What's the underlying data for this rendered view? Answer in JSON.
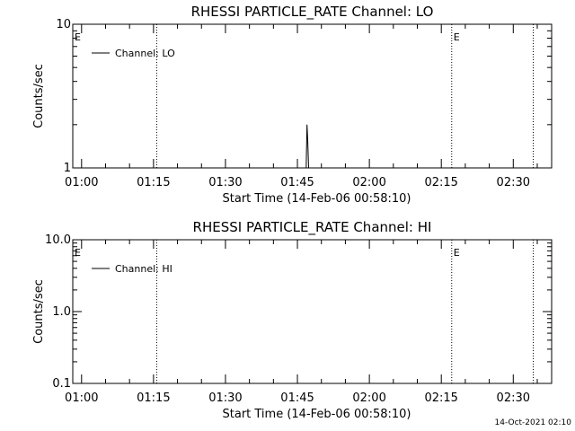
{
  "footer_timestamp": "14-Oct-2021 02:10",
  "chart_data": [
    {
      "type": "line",
      "title": "RHESSI PARTICLE_RATE Channel: LO",
      "xlabel": "Start Time (14-Feb-06 00:58:10)",
      "ylabel": "Counts/sec",
      "y_scale": "log",
      "ylim": [
        1,
        10
      ],
      "y_ticks": [
        1,
        10
      ],
      "y_tick_labels": [
        "1",
        "10"
      ],
      "xlim": [
        "00:58:10",
        "02:38:00"
      ],
      "x_ticks": [
        "01:00",
        "01:15",
        "01:30",
        "01:45",
        "02:00",
        "02:15",
        "02:30"
      ],
      "legend": "top-left",
      "series": [
        {
          "name": "Channel: LO",
          "x": [
            "01:46:50",
            "01:47:00",
            "01:47:10",
            "01:47:20",
            "01:47:30"
          ],
          "y": [
            1,
            2,
            1.5,
            1,
            1
          ]
        }
      ],
      "vlines": [
        "01:15:40",
        "02:17:10",
        "02:34:10"
      ],
      "event_markers": [
        {
          "time": "00:58:10",
          "label": "E"
        },
        {
          "time": "02:17:10",
          "label": "E"
        }
      ]
    },
    {
      "type": "line",
      "title": "RHESSI PARTICLE_RATE Channel: HI",
      "xlabel": "Start Time (14-Feb-06 00:58:10)",
      "ylabel": "Counts/sec",
      "y_scale": "log",
      "ylim": [
        0.1,
        10
      ],
      "y_ticks": [
        0.1,
        1,
        10
      ],
      "y_tick_labels": [
        "0.1",
        "1.0",
        "10.0"
      ],
      "xlim": [
        "00:58:10",
        "02:38:00"
      ],
      "x_ticks": [
        "01:00",
        "01:15",
        "01:30",
        "01:45",
        "02:00",
        "02:15",
        "02:30"
      ],
      "legend": "top-left",
      "series": [
        {
          "name": "Channel: HI",
          "x": [],
          "y": []
        }
      ],
      "vlines": [
        "01:15:40",
        "02:17:10",
        "02:34:10"
      ],
      "event_markers": [
        {
          "time": "00:58:10",
          "label": "E"
        },
        {
          "time": "02:17:10",
          "label": "E"
        }
      ]
    }
  ]
}
